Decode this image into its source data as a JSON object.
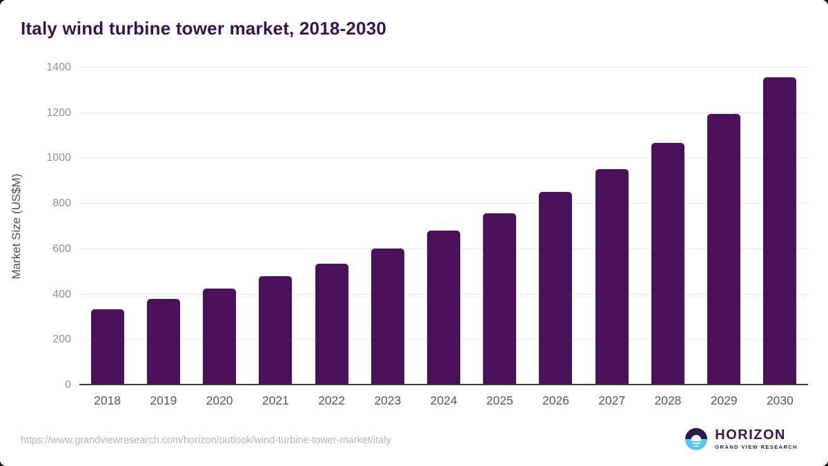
{
  "page": {
    "title": "Italy wind turbine tower market, 2018-2030",
    "source_url": "https://www.grandviewresearch.com/horizon/outlook/wind-turbine-tower-market/italy"
  },
  "logo": {
    "sunset-icon": "sunset-over-water-icon",
    "name": "HORIZON",
    "subtitle": "GRAND VIEW RESEARCH"
  },
  "chart_data": {
    "type": "bar",
    "title": "Italy wind turbine tower market, 2018-2030",
    "categories": [
      "2018",
      "2019",
      "2020",
      "2021",
      "2022",
      "2023",
      "2024",
      "2025",
      "2026",
      "2027",
      "2028",
      "2029",
      "2030"
    ],
    "values": [
      336,
      380,
      425,
      480,
      537,
      604,
      681,
      759,
      852,
      952,
      1067,
      1197,
      1357
    ],
    "xlabel": "",
    "ylabel": "Market Size (US$M)",
    "ylim": [
      0,
      1400
    ],
    "yticks": [
      0,
      200,
      400,
      600,
      800,
      1000,
      1200,
      1400
    ],
    "grid": "horizontal",
    "legend": "none"
  },
  "colors": {
    "title": "#361253",
    "bar": "#4a1058",
    "gridline": "#e8e8e8",
    "baseline": "#3a3a3a",
    "ytick_label": "#8e8e8e",
    "xtick_label": "#565656",
    "ylabel": "#4d4d4d",
    "url": "#b3b3b3",
    "logo_purple": "#2b1b4d",
    "logo_blue": "#55c6f2"
  }
}
